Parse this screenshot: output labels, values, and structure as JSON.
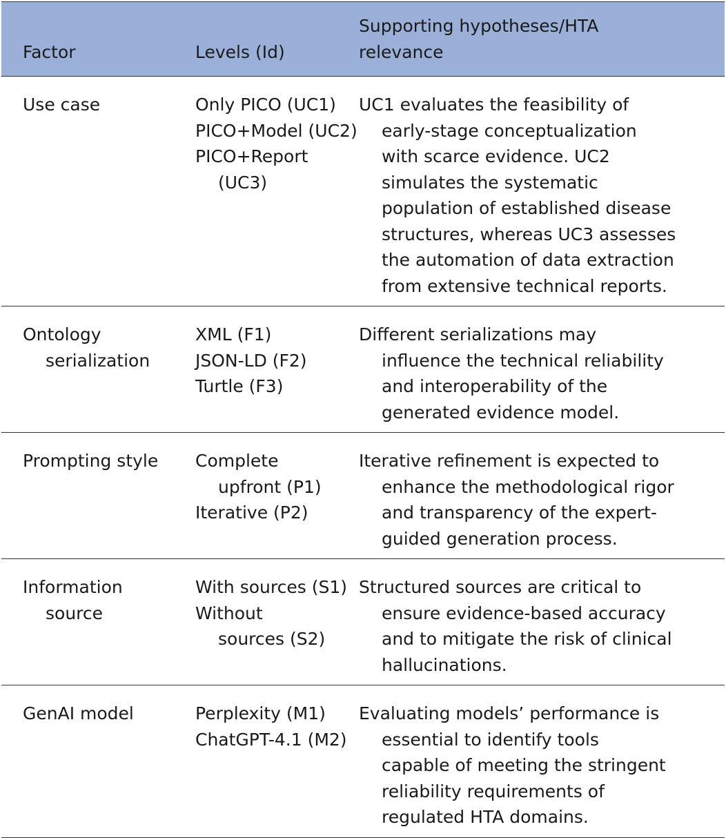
{
  "headers": [
    "Factor",
    "Levels (Id)",
    "Supporting hypotheses/HTA relevance"
  ],
  "header_lines": {
    "relevance": [
      "Supporting hypotheses/HTA",
      "relevance"
    ]
  },
  "rows": [
    {
      "factor_lines": [
        "Use case"
      ],
      "levels": [
        [
          "Only PICO (UC1)"
        ],
        [
          "PICO+Model (UC2)"
        ],
        [
          "PICO+Report",
          "(UC3)"
        ]
      ],
      "relevance_lines": [
        "UC1 evaluates the feasibility of",
        "early-stage conceptualization",
        "with scarce evidence. UC2",
        "simulates the systematic",
        "population of established disease",
        "structures, whereas UC3 assesses",
        "the automation of data extraction",
        "from extensive technical reports."
      ]
    },
    {
      "factor_lines": [
        "Ontology",
        "serialization"
      ],
      "levels": [
        [
          "XML (F1)"
        ],
        [
          "JSON-LD (F2)"
        ],
        [
          "Turtle (F3)"
        ]
      ],
      "relevance_lines": [
        "Different serializations may",
        "influence the technical reliability",
        "and interoperability of the",
        "generated evidence model."
      ]
    },
    {
      "factor_lines": [
        "Prompting style"
      ],
      "levels": [
        [
          "Complete",
          "upfront (P1)"
        ],
        [
          "Iterative (P2)"
        ]
      ],
      "relevance_lines": [
        "Iterative refinement is expected to",
        "enhance the methodological rigor",
        "and transparency of the expert-",
        "guided generation process."
      ]
    },
    {
      "factor_lines": [
        "Information",
        "source"
      ],
      "levels": [
        [
          "With sources (S1)"
        ],
        [
          "Without",
          "sources (S2)"
        ]
      ],
      "relevance_lines": [
        "Structured sources are critical to",
        "ensure evidence-based accuracy",
        "and to mitigate the risk of clinical",
        "hallucinations."
      ]
    },
    {
      "factor_lines": [
        "GenAI model"
      ],
      "levels": [
        [
          "Perplexity (M1)"
        ],
        [
          "ChatGPT-4.1 (M2)"
        ]
      ],
      "relevance_lines": [
        "Evaluating models’ performance is",
        "essential to identify tools",
        "capable of meeting the stringent",
        "reliability requirements of",
        "regulated HTA domains."
      ]
    }
  ]
}
